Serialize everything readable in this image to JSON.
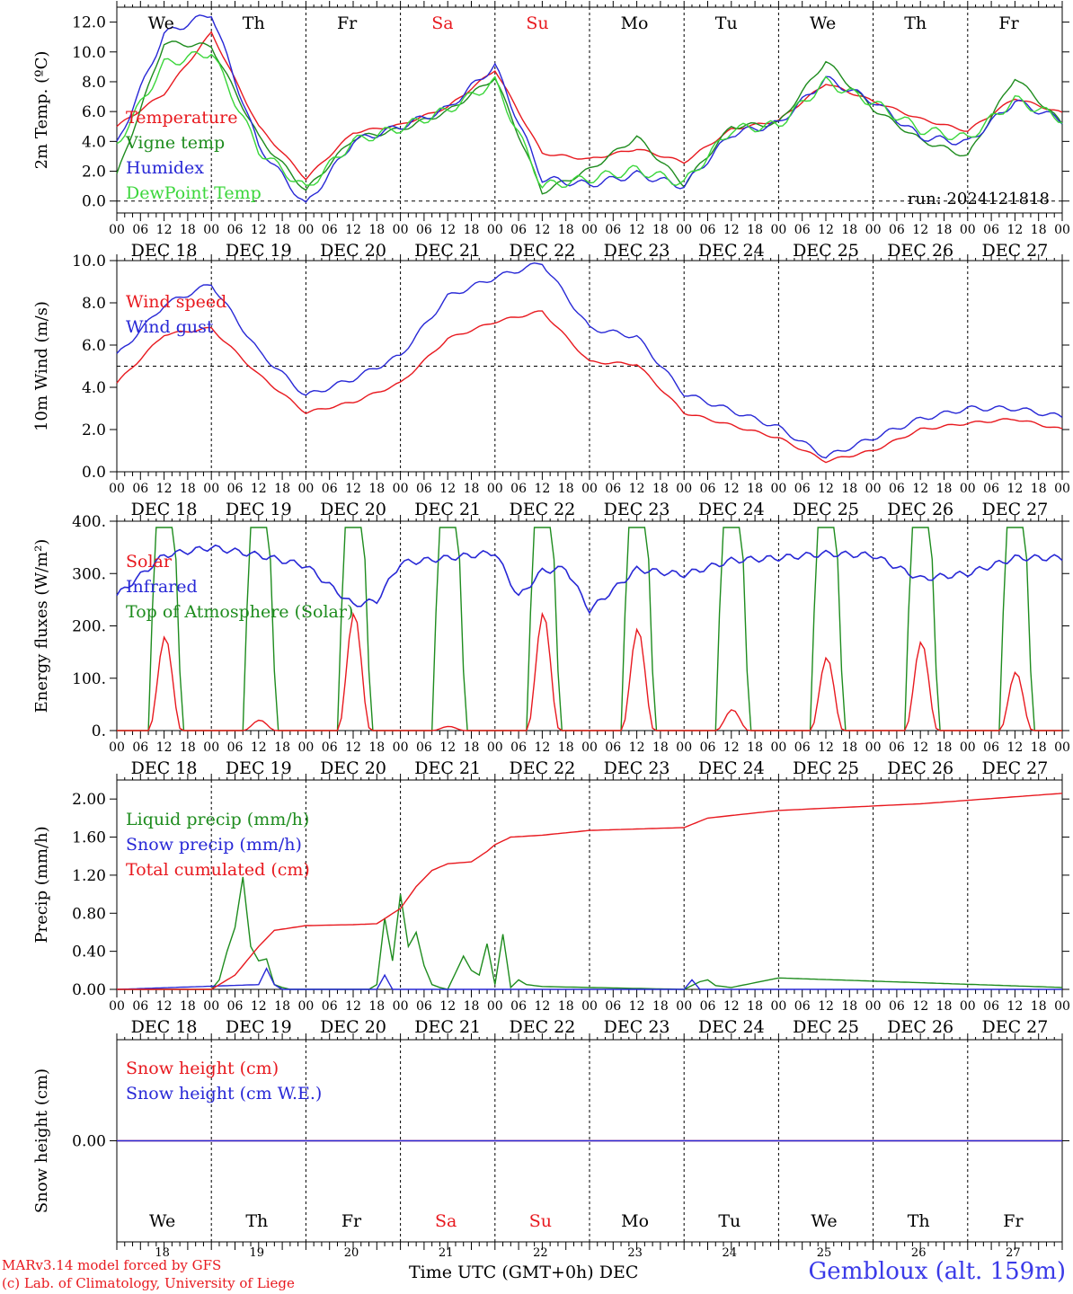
{
  "chart_data": [
    {
      "type": "line",
      "ylabel": "2m Temp. (ºC)",
      "ylim": [
        -0.8,
        13.0
      ],
      "yticks": [
        "0.0",
        "2.0",
        "4.0",
        "6.0",
        "8.0",
        "10.0",
        "12.0"
      ],
      "ytick_values": [
        0,
        2,
        4,
        6,
        8,
        10,
        12
      ],
      "x_unit": "hours from 2024-12-18 00 UTC",
      "dashed_reference": 0,
      "annotation": "run: 2024121818",
      "x": [
        0,
        12,
        24,
        36,
        48,
        60,
        72,
        84,
        96,
        108,
        120,
        132,
        144,
        156,
        168,
        180,
        192,
        204,
        216,
        228,
        240
      ],
      "series": [
        {
          "name": "Temperature",
          "color": "#e8191f",
          "values": [
            5.0,
            7.2,
            11.3,
            5.0,
            1.5,
            4.6,
            5.1,
            6.3,
            8.8,
            3.2,
            2.8,
            3.5,
            2.6,
            4.8,
            5.4,
            7.9,
            6.7,
            5.5,
            4.7,
            6.9,
            5.9
          ]
        },
        {
          "name": "Vigne temp",
          "color": "#1e8c1e",
          "values": [
            1.7,
            10.6,
            10.4,
            4.3,
            0.7,
            4.2,
            4.8,
            6.0,
            8.3,
            0.6,
            2.1,
            4.3,
            1.1,
            5.0,
            5.2,
            9.4,
            6.2,
            4.1,
            3.0,
            8.3,
            5.2
          ]
        },
        {
          "name": "Humidex",
          "color": "#2828d6",
          "values": [
            3.8,
            11.2,
            12.6,
            3.7,
            -0.3,
            4.0,
            5.0,
            6.2,
            9.1,
            1.5,
            1.1,
            1.8,
            1.0,
            4.5,
            5.2,
            8.2,
            6.7,
            4.3,
            3.9,
            6.7,
            5.4
          ]
        },
        {
          "name": "DewPoint Temp",
          "color": "#3ad63a",
          "values": [
            3.8,
            9.2,
            10.0,
            3.4,
            0.8,
            4.0,
            4.9,
            6.1,
            8.0,
            1.0,
            1.5,
            2.1,
            1.2,
            4.8,
            5.1,
            8.0,
            6.6,
            4.8,
            4.2,
            6.8,
            5.5
          ]
        }
      ]
    },
    {
      "type": "line",
      "ylabel": "10m Wind (m/s)",
      "ylim": [
        0,
        10
      ],
      "yticks": [
        "0.0",
        "2.0",
        "4.0",
        "6.0",
        "8.0",
        "10.0"
      ],
      "ytick_values": [
        0,
        2,
        4,
        6,
        8,
        10
      ],
      "x_unit": "hours from 2024-12-18 00 UTC",
      "dashed_reference": 5,
      "x": [
        0,
        12,
        24,
        36,
        48,
        60,
        72,
        84,
        96,
        108,
        120,
        132,
        144,
        156,
        168,
        180,
        192,
        204,
        216,
        228,
        240
      ],
      "series": [
        {
          "name": "Wind speed",
          "color": "#e8191f",
          "values": [
            4.2,
            6.5,
            6.8,
            4.6,
            2.8,
            3.3,
            4.2,
            6.3,
            7.1,
            7.6,
            5.2,
            5.1,
            2.8,
            2.2,
            1.6,
            0.5,
            1.0,
            2.0,
            2.3,
            2.5,
            2.0
          ]
        },
        {
          "name": "Wind gust",
          "color": "#2828d6",
          "values": [
            5.5,
            7.9,
            8.9,
            5.7,
            3.6,
            4.4,
            5.5,
            8.3,
            9.2,
            9.9,
            6.8,
            6.4,
            3.7,
            2.9,
            2.1,
            0.7,
            1.6,
            2.5,
            3.0,
            3.0,
            2.6
          ]
        }
      ]
    },
    {
      "type": "line",
      "ylabel": "Energy fluxes (W/m²)",
      "ylim": [
        0,
        400
      ],
      "yticks": [
        "0.",
        "100.",
        "200.",
        "300.",
        "400."
      ],
      "ytick_values": [
        0,
        100,
        200,
        300,
        400
      ],
      "x_unit": "hours from 2024-12-18 00 UTC",
      "solar_peaks_hour12": [
        180,
        20,
        225,
        8,
        225,
        195,
        40,
        140,
        170,
        112
      ],
      "toa_daily_peak": 388,
      "daylight_hours": [
        8,
        16.5
      ],
      "series": [
        {
          "name": "Solar",
          "color": "#e8191f"
        },
        {
          "name": "Infrared",
          "color": "#2828d6",
          "x": [
            0,
            12,
            24,
            36,
            48,
            60,
            66,
            72,
            84,
            96,
            102,
            108,
            114,
            120,
            132,
            144,
            156,
            168,
            180,
            192,
            204,
            216,
            228,
            240
          ],
          "values": [
            258,
            335,
            350,
            335,
            315,
            240,
            248,
            320,
            330,
            340,
            255,
            305,
            310,
            230,
            308,
            298,
            325,
            330,
            338,
            335,
            290,
            300,
            330,
            330
          ]
        },
        {
          "name": "Top of Atmosphere (Solar)",
          "color": "#1e8c1e"
        }
      ]
    },
    {
      "type": "line",
      "ylabel": "Precip (mm/h)",
      "ylim": [
        0,
        2.2
      ],
      "yticks": [
        "0.00",
        "0.40",
        "0.80",
        "1.20",
        "1.60",
        "2.00"
      ],
      "ytick_values": [
        0,
        0.4,
        0.8,
        1.2,
        1.6,
        2.0
      ],
      "x_unit": "hours from 2024-12-18 00 UTC",
      "series": [
        {
          "name": "Liquid precip (mm/h)",
          "color": "#1e8c1e",
          "x": [
            0,
            24,
            26,
            28,
            30,
            32,
            34,
            36,
            38,
            40,
            42,
            44,
            46,
            48,
            64,
            66,
            68,
            70,
            72,
            74,
            76,
            78,
            80,
            82,
            84,
            88,
            90,
            92,
            94,
            96,
            98,
            100,
            102,
            104,
            108,
            120,
            144,
            148,
            150,
            152,
            156,
            168,
            240
          ],
          "values": [
            0,
            0,
            0.1,
            0.4,
            0.65,
            1.18,
            0.45,
            0.3,
            0.32,
            0.05,
            0.02,
            0,
            0,
            0,
            0,
            0.05,
            0.75,
            0.3,
            1.0,
            0.45,
            0.6,
            0.25,
            0.05,
            0.02,
            0,
            0.35,
            0.2,
            0.15,
            0.48,
            0.05,
            0.58,
            0.02,
            0.1,
            0.05,
            0.03,
            0.02,
            0,
            0.08,
            0.1,
            0.04,
            0.02,
            0.12,
            0.02
          ]
        },
        {
          "name": "Snow precip (mm/h)",
          "color": "#2828d6",
          "x": [
            0,
            36,
            38,
            40,
            42,
            66,
            68,
            70,
            144,
            146,
            148,
            240
          ],
          "values": [
            0,
            0.05,
            0.22,
            0.05,
            0,
            0,
            0.15,
            0,
            0,
            0.1,
            0,
            0
          ]
        },
        {
          "name": "Total cumulated (cm)",
          "color": "#e8191f",
          "x": [
            0,
            24,
            30,
            36,
            40,
            48,
            60,
            66,
            72,
            76,
            80,
            84,
            90,
            94,
            96,
            100,
            108,
            120,
            144,
            150,
            168,
            204,
            240
          ],
          "values": [
            0,
            0,
            0.15,
            0.45,
            0.62,
            0.67,
            0.68,
            0.69,
            0.85,
            1.08,
            1.25,
            1.32,
            1.34,
            1.45,
            1.52,
            1.6,
            1.62,
            1.67,
            1.7,
            1.8,
            1.88,
            1.95,
            2.06
          ]
        }
      ]
    },
    {
      "type": "line",
      "ylabel": "Snow height (cm)",
      "ylim": [
        -1,
        1
      ],
      "yticks": [
        "0.00"
      ],
      "ytick_values": [
        0
      ],
      "x_unit": "hours from 2024-12-18 00 UTC",
      "series": [
        {
          "name": "Snow height (cm)",
          "color": "#e8191f",
          "x": [
            0,
            240
          ],
          "values": [
            0,
            0
          ]
        },
        {
          "name": "Snow height (cm W.E.)",
          "color": "#2828d6",
          "x": [
            0,
            240
          ],
          "values": [
            0,
            0
          ]
        }
      ]
    }
  ],
  "days": [
    {
      "abbr": "We",
      "weekend": false,
      "label": "DEC 18",
      "num": "18"
    },
    {
      "abbr": "Th",
      "weekend": false,
      "label": "DEC 19",
      "num": "19"
    },
    {
      "abbr": "Fr",
      "weekend": false,
      "label": "DEC 20",
      "num": "20"
    },
    {
      "abbr": "Sa",
      "weekend": true,
      "label": "DEC 21",
      "num": "21"
    },
    {
      "abbr": "Su",
      "weekend": true,
      "label": "DEC 22",
      "num": "22"
    },
    {
      "abbr": "Mo",
      "weekend": false,
      "label": "DEC 23",
      "num": "23"
    },
    {
      "abbr": "Tu",
      "weekend": false,
      "label": "DEC 24",
      "num": "24"
    },
    {
      "abbr": "We",
      "weekend": false,
      "label": "DEC 25",
      "num": "25"
    },
    {
      "abbr": "Th",
      "weekend": false,
      "label": "DEC 26",
      "num": "26"
    },
    {
      "abbr": "Fr",
      "weekend": false,
      "label": "DEC 27",
      "num": "27"
    }
  ],
  "hour_ticks": [
    "00",
    "06",
    "12",
    "18"
  ],
  "final_hour_tick": "00",
  "colors": {
    "weekend": "#e8191f",
    "weekday": "#000000",
    "station": "#3a3ae8"
  },
  "footer": {
    "credit_line1": "MARv3.14 model forced by GFS",
    "credit_line2": "(c) Lab. of Climatology, University of Liege",
    "axis_title": "Time UTC (GMT+0h) DEC",
    "station": "Gembloux (alt. 159m)"
  }
}
